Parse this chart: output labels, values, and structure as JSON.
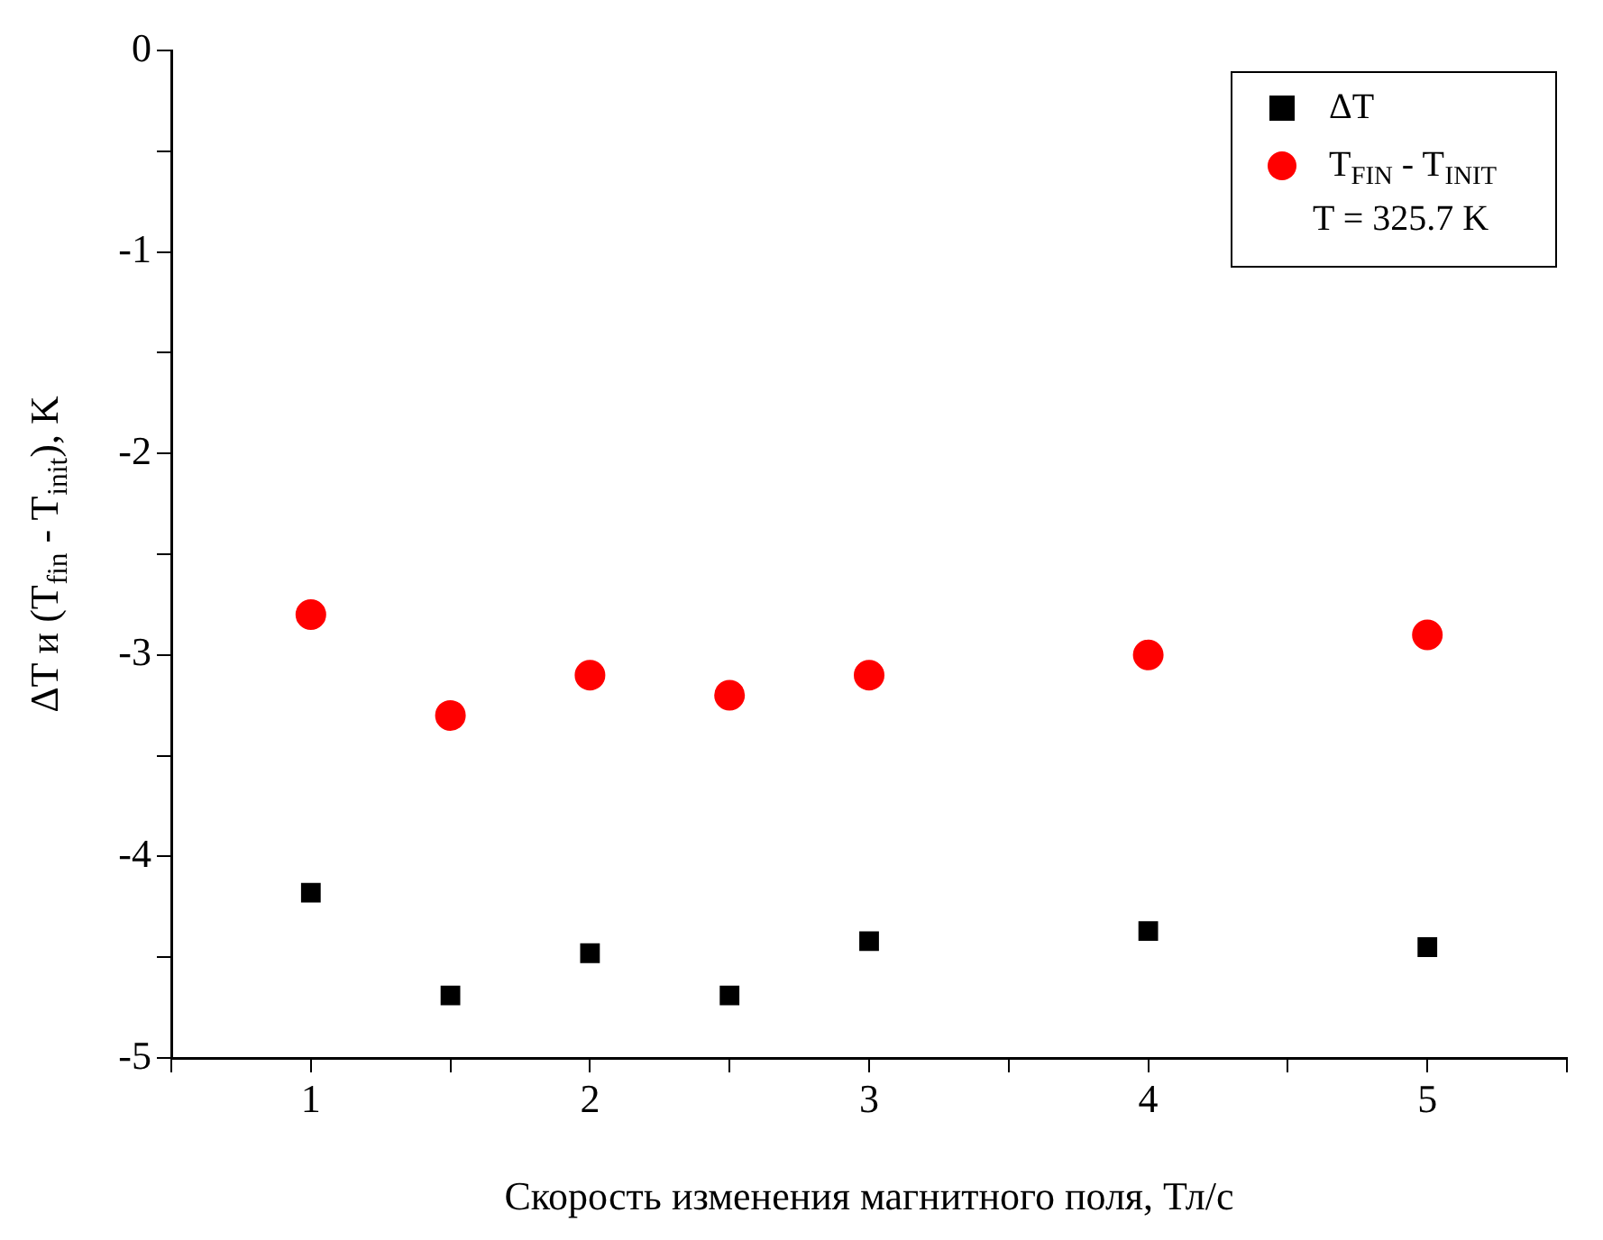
{
  "chart_data": {
    "type": "scatter",
    "xlabel": "Скорость изменения магнитного поля, Тл/с",
    "ylabel": "ΔT и (T$_{fin}$ - T$_{init}$), K",
    "x": [
      1,
      1.5,
      2,
      2.5,
      3,
      4,
      5
    ],
    "series": [
      {
        "name": "ΔT",
        "color": "#000000",
        "marker": "square",
        "values": [
          -4.18,
          -4.69,
          -4.48,
          -4.69,
          -4.42,
          -4.37,
          -4.45
        ]
      },
      {
        "name": "T$_{FIN}$ - T$_{INIT}$",
        "color": "#ff0000",
        "marker": "circle",
        "values": [
          -2.8,
          -3.3,
          -3.1,
          -3.2,
          -3.1,
          -3.0,
          -2.9
        ]
      }
    ],
    "annotations": [
      "T = 325.7 K"
    ],
    "xlim": [
      0.5,
      5.5
    ],
    "ylim": [
      -5,
      0
    ],
    "xticks": [
      {
        "value": 0.5,
        "label": null
      },
      1,
      {
        "value": 1.5,
        "label": null
      },
      2,
      {
        "value": 2.5,
        "label": null
      },
      3,
      {
        "value": 3.5,
        "label": null
      },
      4,
      {
        "value": 4.5,
        "label": null
      },
      5,
      {
        "value": 5.5,
        "label": null
      }
    ],
    "yticks": [
      -5,
      {
        "value": -4.5,
        "label": null
      },
      -4,
      {
        "value": -3.5,
        "label": null
      },
      -3,
      {
        "value": -2.5,
        "label": null
      },
      -2,
      {
        "value": -1.5,
        "label": null
      },
      -1,
      {
        "value": -0.5,
        "label": null
      },
      0
    ],
    "grid": false,
    "legend": "top right"
  }
}
